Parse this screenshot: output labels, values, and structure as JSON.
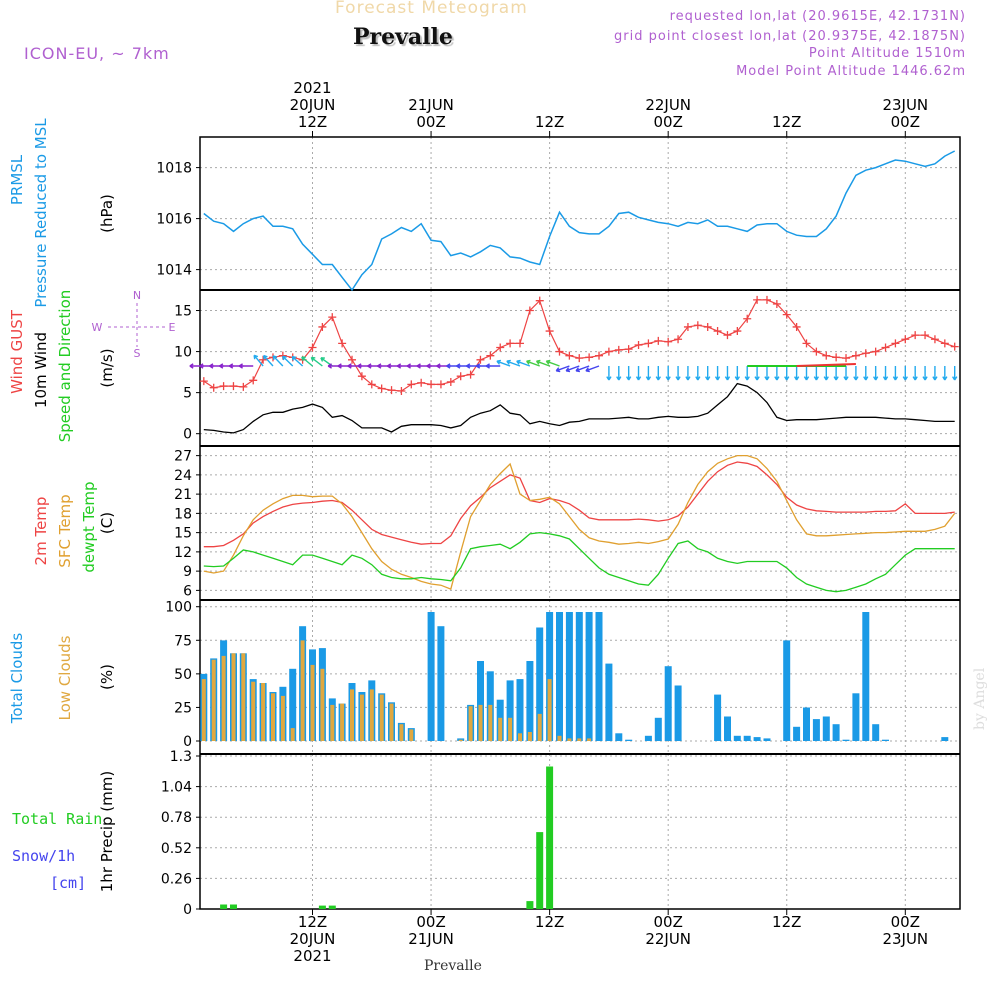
{
  "header": {
    "subtitle": "Forecast Meteogram",
    "place": "Prevalle",
    "model": "ICON-EU, ~ 7km",
    "requested": "requested lon,lat (20.9615E, 42.1731N)",
    "gridpoint": "grid point closest lon,lat (20.9375E, 42.1875N)",
    "point_alt": "Point Altitude 1510m",
    "model_alt": "Model Point Altitude 1446.62m",
    "footer_place": "Prevalle",
    "credit": "by Angel"
  },
  "colors": {
    "pressure": "#1a9ae6",
    "gust": "#ee4444",
    "wind": "#000000",
    "temp2m": "#ee4444",
    "sfc": "#e0a030",
    "dewpt": "#22cc22",
    "total_clouds": "#1a9ae6",
    "low_clouds": "#e0a840",
    "rain": "#22cc22",
    "snow": "#4444ee",
    "meta": "#b060d0"
  },
  "time_axis": {
    "top": [
      {
        "t": 0,
        "l1": "20JUN",
        "l2": "12Z",
        "year": "2021"
      },
      {
        "t": 12,
        "l1": "21JUN",
        "l2": "00Z"
      },
      {
        "t": 24,
        "l1": "",
        "l2": "12Z"
      },
      {
        "t": 36,
        "l1": "22JUN",
        "l2": "00Z"
      },
      {
        "t": 48,
        "l1": "",
        "l2": "12Z"
      },
      {
        "t": 60,
        "l1": "23JUN",
        "l2": "00Z"
      }
    ],
    "bottom": [
      {
        "t": 0,
        "l1": "12Z",
        "l2": "20JUN",
        "year": "2021"
      },
      {
        "t": 12,
        "l1": "00Z",
        "l2": "21JUN"
      },
      {
        "t": 24,
        "l1": "12Z",
        "l2": ""
      },
      {
        "t": 36,
        "l1": "00Z",
        "l2": "22JUN"
      },
      {
        "t": 48,
        "l1": "12Z",
        "l2": ""
      },
      {
        "t": 60,
        "l1": "00Z",
        "l2": "23JUN"
      }
    ],
    "t_start": -11,
    "t_end": 65
  },
  "chart_data": [
    {
      "type": "line",
      "panel": "pressure",
      "label_lines": [
        "PRMSL",
        "Pressure Reduced to MSL"
      ],
      "ylabel": "(hPa)",
      "yticks": [
        1014,
        1016,
        1018
      ],
      "ylim": [
        1013.2,
        1019.2
      ],
      "x": [
        -11,
        -10,
        -9,
        -8,
        -7,
        -6,
        -5,
        -4,
        -3,
        -2,
        -1,
        0,
        1,
        2,
        3,
        4,
        5,
        6,
        7,
        8,
        9,
        10,
        11,
        12,
        13,
        14,
        15,
        16,
        17,
        18,
        19,
        20,
        21,
        22,
        23,
        24,
        25,
        26,
        27,
        28,
        29,
        30,
        31,
        32,
        33,
        34,
        35,
        36,
        37,
        38,
        39,
        40,
        41,
        42,
        43,
        44,
        45,
        46,
        47,
        48,
        49,
        50,
        51,
        52,
        53,
        54,
        55,
        56,
        57,
        58,
        59,
        60,
        61,
        62,
        63,
        64,
        65
      ],
      "series": [
        {
          "values": [
            1016.2,
            1015.9,
            1015.8,
            1015.5,
            1015.8,
            1016.0,
            1016.1,
            1015.7,
            1015.7,
            1015.6,
            1015.0,
            1014.6,
            1014.2,
            1014.2,
            1013.7,
            1013.2,
            1013.8,
            1014.2,
            1015.2,
            1015.4,
            1015.65,
            1015.5,
            1015.8,
            1015.15,
            1015.1,
            1014.55,
            1014.65,
            1014.5,
            1014.7,
            1014.95,
            1014.85,
            1014.5,
            1014.45,
            1014.3,
            1014.2,
            1015.3,
            1016.25,
            1015.7,
            1015.45,
            1015.4,
            1015.4,
            1015.7,
            1016.2,
            1016.25,
            1016.05,
            1015.95,
            1015.85,
            1015.8,
            1015.7,
            1015.85,
            1015.8,
            1015.95,
            1015.7,
            1015.7,
            1015.6,
            1015.5,
            1015.75,
            1015.8,
            1015.8,
            1015.5,
            1015.35,
            1015.3,
            1015.3,
            1015.6,
            1016.1,
            1017.0,
            1017.7,
            1017.9,
            1018.0,
            1018.15,
            1018.3,
            1018.25,
            1018.15,
            1018.05,
            1018.15,
            1018.45,
            1018.65
          ]
        }
      ]
    },
    {
      "type": "line",
      "panel": "wind",
      "label_gust": "Wind GUST",
      "label_wind": "10m Wind",
      "label_dir": "Speed and Direction",
      "ylabel": "(m/s)",
      "compass": {
        "n": "N",
        "s": "S",
        "w": "W",
        "e": "E"
      },
      "yticks": [
        0,
        5,
        10,
        15
      ],
      "ylim": [
        -1.5,
        17.5
      ],
      "x": [
        -11,
        -10,
        -9,
        -8,
        -7,
        -6,
        -5,
        -4,
        -3,
        -2,
        -1,
        0,
        1,
        2,
        3,
        4,
        5,
        6,
        7,
        8,
        9,
        10,
        11,
        12,
        13,
        14,
        15,
        16,
        17,
        18,
        19,
        20,
        21,
        22,
        23,
        24,
        25,
        26,
        27,
        28,
        29,
        30,
        31,
        32,
        33,
        34,
        35,
        36,
        37,
        38,
        39,
        40,
        41,
        42,
        43,
        44,
        45,
        46,
        47,
        48,
        49,
        50,
        51,
        52,
        53,
        54,
        55,
        56,
        57,
        58,
        59,
        60,
        61,
        62,
        63,
        64,
        65
      ],
      "series": [
        {
          "name": "Wind GUST",
          "values": [
            6.4,
            5.6,
            5.8,
            5.8,
            5.7,
            6.5,
            9.0,
            9.3,
            9.5,
            9.3,
            9.0,
            10.5,
            13.0,
            14.2,
            11.0,
            9.0,
            7.0,
            6.0,
            5.5,
            5.3,
            5.2,
            6.0,
            6.2,
            6.0,
            6.0,
            6.3,
            7.0,
            7.2,
            9.0,
            9.5,
            10.5,
            11.0,
            11.0,
            15.0,
            16.2,
            12.5,
            10.0,
            9.5,
            9.2,
            9.3,
            9.5,
            10.0,
            10.2,
            10.3,
            10.8,
            11.0,
            11.3,
            11.2,
            11.5,
            13.0,
            13.2,
            13.0,
            12.5,
            12.0,
            12.5,
            14.0,
            16.3,
            16.3,
            15.8,
            14.5,
            13.0,
            11.0,
            10.0,
            9.5,
            9.3,
            9.2,
            9.5,
            9.8,
            10.0,
            10.5,
            11.0,
            11.5,
            12.0,
            12.0,
            11.5,
            11.0,
            10.6
          ]
        },
        {
          "name": "10m Wind",
          "values": [
            0.5,
            0.4,
            0.2,
            0.1,
            0.5,
            1.5,
            2.3,
            2.6,
            2.6,
            3.0,
            3.2,
            3.6,
            3.2,
            2.0,
            2.2,
            1.6,
            0.7,
            0.7,
            0.7,
            0.2,
            0.9,
            1.1,
            1.1,
            1.1,
            1.0,
            0.7,
            1.0,
            2.0,
            2.5,
            2.8,
            3.5,
            2.5,
            2.3,
            1.2,
            1.5,
            1.2,
            1.0,
            1.4,
            1.5,
            1.8,
            1.8,
            1.8,
            1.9,
            2.0,
            1.8,
            1.8,
            2.0,
            2.1,
            2.0,
            2.0,
            2.1,
            2.5,
            3.5,
            4.5,
            6.1,
            5.8,
            5.0,
            3.8,
            2.0,
            1.6,
            1.7,
            1.7,
            1.7,
            1.8,
            1.9,
            2.0,
            2.0,
            2.0,
            2.0,
            1.9,
            1.8,
            1.8,
            1.7,
            1.6,
            1.5,
            1.5,
            1.5
          ]
        }
      ]
    },
    {
      "type": "line",
      "panel": "temperature",
      "label_2m": "2m Temp",
      "label_sfc": "SFC Temp",
      "label_dew": "dewpt Temp",
      "ylabel": "(C)",
      "yticks": [
        6,
        9,
        12,
        15,
        18,
        21,
        24,
        27
      ],
      "ylim": [
        4.5,
        28.5
      ],
      "x": [
        -11,
        -10,
        -9,
        -8,
        -7,
        -6,
        -5,
        -4,
        -3,
        -2,
        -1,
        0,
        1,
        2,
        3,
        4,
        5,
        6,
        7,
        8,
        9,
        10,
        11,
        12,
        13,
        14,
        15,
        16,
        17,
        18,
        19,
        20,
        21,
        22,
        23,
        24,
        25,
        26,
        27,
        28,
        29,
        30,
        31,
        32,
        33,
        34,
        35,
        36,
        37,
        38,
        39,
        40,
        41,
        42,
        43,
        44,
        45,
        46,
        47,
        48,
        49,
        50,
        51,
        52,
        53,
        54,
        55,
        56,
        57,
        58,
        59,
        60,
        61,
        62,
        63,
        64,
        65
      ],
      "series": [
        {
          "name": "2m Temp",
          "values": [
            12.8,
            12.8,
            13.0,
            13.8,
            14.8,
            16.5,
            17.5,
            18.3,
            19.0,
            19.4,
            19.6,
            19.7,
            19.9,
            20.0,
            19.7,
            18.5,
            17.0,
            15.5,
            14.7,
            14.3,
            13.9,
            13.5,
            13.2,
            13.3,
            13.3,
            14.5,
            17.2,
            19.2,
            20.5,
            22.0,
            23.0,
            24.0,
            23.5,
            20.0,
            19.7,
            20.3,
            20.0,
            19.5,
            18.5,
            17.3,
            17.0,
            17.0,
            17.0,
            17.0,
            17.1,
            17.0,
            16.8,
            17.0,
            17.6,
            19.0,
            21.0,
            23.0,
            24.5,
            25.5,
            26.0,
            25.8,
            25.3,
            24.0,
            22.5,
            20.5,
            19.3,
            18.7,
            18.4,
            18.3,
            18.2,
            18.2,
            18.2,
            18.2,
            18.3,
            18.3,
            18.4,
            19.5,
            18.0,
            18.0,
            18.0,
            18.0,
            18.2
          ]
        },
        {
          "name": "SFC Temp",
          "values": [
            9.0,
            8.7,
            9.0,
            11.5,
            14.5,
            17.0,
            18.5,
            19.5,
            20.3,
            20.8,
            20.8,
            20.6,
            20.7,
            20.7,
            19.5,
            17.5,
            15.0,
            12.5,
            10.5,
            9.3,
            8.5,
            8.0,
            7.4,
            7.0,
            6.8,
            6.2,
            12.0,
            17.5,
            20.0,
            22.5,
            24.2,
            25.7,
            21.0,
            20.0,
            20.2,
            20.5,
            19.5,
            17.5,
            15.5,
            14.2,
            13.7,
            13.5,
            13.2,
            13.3,
            13.5,
            13.3,
            13.6,
            14.0,
            16.3,
            19.7,
            22.5,
            24.5,
            25.8,
            26.5,
            27.0,
            27.0,
            26.5,
            25.0,
            23.0,
            20.0,
            17.0,
            14.8,
            14.5,
            14.5,
            14.6,
            14.7,
            14.8,
            14.9,
            15.0,
            15.0,
            15.1,
            15.2,
            15.2,
            15.2,
            15.5,
            16.0,
            18.0
          ]
        },
        {
          "name": "dewpt Temp",
          "values": [
            9.8,
            9.7,
            9.8,
            11.0,
            12.3,
            12.0,
            11.5,
            11.0,
            10.5,
            10.0,
            11.5,
            11.5,
            11.0,
            10.5,
            10.0,
            11.5,
            11.0,
            10.0,
            8.5,
            8.0,
            7.8,
            7.8,
            8.0,
            7.8,
            7.7,
            7.5,
            9.5,
            12.5,
            12.8,
            13.0,
            13.2,
            12.5,
            13.5,
            14.8,
            15.0,
            14.8,
            14.5,
            14.0,
            12.5,
            11.0,
            9.5,
            8.5,
            8.0,
            7.5,
            7.0,
            6.8,
            8.5,
            11.0,
            13.3,
            13.7,
            12.5,
            12.0,
            11.0,
            10.5,
            10.2,
            10.5,
            10.5,
            10.5,
            10.5,
            9.5,
            8.0,
            7.0,
            6.5,
            6.0,
            5.8,
            6.0,
            6.5,
            7.0,
            7.8,
            8.5,
            10.0,
            11.5,
            12.5,
            12.5,
            12.5,
            12.5,
            12.5
          ]
        }
      ]
    },
    {
      "type": "bar",
      "panel": "clouds",
      "label_total": "Total Clouds",
      "label_low": "Low Clouds",
      "ylabel": "(%)",
      "yticks": [
        0,
        25,
        50,
        75,
        100
      ],
      "ylim": [
        0,
        105
      ],
      "x": [
        -11,
        -10,
        -9,
        -8,
        -7,
        -6,
        -5,
        -4,
        -3,
        -2,
        -1,
        0,
        1,
        2,
        3,
        4,
        5,
        6,
        7,
        8,
        9,
        10,
        11,
        12,
        13,
        14,
        15,
        16,
        17,
        18,
        19,
        20,
        21,
        22,
        23,
        24,
        25,
        26,
        27,
        28,
        29,
        30,
        31,
        32,
        33,
        34,
        35,
        36,
        37,
        38,
        39,
        40,
        41,
        42,
        43,
        44,
        45,
        46,
        47,
        48,
        49,
        50,
        51,
        52,
        53,
        54,
        55,
        56,
        57,
        58,
        59,
        60,
        61,
        62,
        63,
        64,
        65
      ],
      "series": [
        {
          "name": "Total Clouds",
          "values": [
            52,
            64,
            78,
            68,
            68,
            48,
            45,
            38,
            42,
            56,
            89,
            71,
            72,
            33,
            29,
            45,
            38,
            47,
            37,
            30,
            14,
            10,
            0,
            100,
            89,
            0,
            2,
            28,
            62,
            54,
            32,
            47,
            48,
            62,
            88,
            100,
            100,
            100,
            100,
            100,
            100,
            60,
            6,
            1,
            0,
            4,
            18,
            58,
            43,
            0,
            0,
            0,
            36,
            19,
            4,
            4,
            3,
            2,
            0,
            78,
            11,
            26,
            17,
            19,
            13,
            1,
            37,
            100,
            13,
            1,
            0,
            0,
            0,
            0,
            0,
            3,
            0
          ]
        },
        {
          "name": "Low Clouds",
          "values": [
            48,
            63,
            66,
            68,
            68,
            46,
            45,
            37,
            35,
            10,
            78,
            59,
            56,
            28,
            29,
            40,
            36,
            40,
            36,
            29,
            13,
            9,
            0,
            0,
            0,
            0,
            1,
            27,
            28,
            28,
            18,
            18,
            6,
            7,
            21,
            48,
            4,
            2,
            2,
            2,
            0,
            0,
            0,
            0,
            0,
            0,
            0,
            0,
            0,
            0,
            0,
            0,
            0,
            0,
            0,
            0,
            0,
            0,
            0,
            0,
            0,
            0,
            0,
            0,
            0,
            0,
            0,
            0,
            0,
            0,
            0,
            0,
            0,
            0,
            0,
            0,
            0
          ]
        }
      ]
    },
    {
      "type": "bar",
      "panel": "precip",
      "label_rain": "Total  Rain",
      "label_snow": "Snow/1h",
      "label_cm": "[cm]",
      "ylabel": "1hr Precip (mm)",
      "yticks": [
        0,
        0.26,
        0.52,
        0.78,
        1.04,
        1.3
      ],
      "ylim": [
        0,
        1.3
      ],
      "x": [
        -9,
        -8,
        1,
        2,
        22,
        23,
        24
      ],
      "series": [
        {
          "name": "Total Rain",
          "values": [
            0.04,
            0.04,
            0.03,
            0.03,
            0.07,
            0.68,
            1.26
          ]
        }
      ]
    }
  ]
}
